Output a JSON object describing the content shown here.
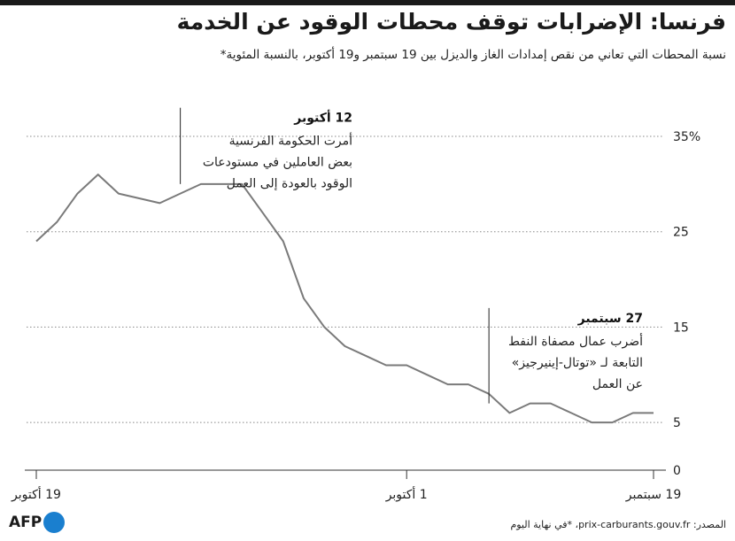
{
  "title": "فرنسا: الإضرابات توقف محطات الوقود عن الخدمة",
  "subtitle": "نسبة المحطات التي تعاني من نقص إمدادات الغاز والديزل بين 19 سبتمبر و19 أكتوبر، بالنسبة المئوية*",
  "source": "المصدر: prix-carburants.gouv.fr، *في نهاية اليوم",
  "logo_text": "AFP",
  "colors": {
    "line": "#7a7a7a",
    "grid": "#888888",
    "logo_blue": "#1a7fcf"
  },
  "chart_data": {
    "type": "line",
    "x_direction": "right-to-left",
    "y_ticks": [
      {
        "value": 0,
        "label": "0"
      },
      {
        "value": 5,
        "label": "5"
      },
      {
        "value": 15,
        "label": "15"
      },
      {
        "value": 25,
        "label": "25"
      },
      {
        "value": 35,
        "label": "35%"
      }
    ],
    "ylim": [
      0,
      35
    ],
    "x_ticks": [
      {
        "day": 0,
        "label": "19 سبتمبر"
      },
      {
        "day": 12,
        "label": "1 أكتوبر"
      },
      {
        "day": 30,
        "label": "19 أكتوبر"
      }
    ],
    "series": [
      {
        "points": [
          {
            "day": 0,
            "value": 6
          },
          {
            "day": 1,
            "value": 6
          },
          {
            "day": 2,
            "value": 5
          },
          {
            "day": 3,
            "value": 5
          },
          {
            "day": 4,
            "value": 6
          },
          {
            "day": 5,
            "value": 7
          },
          {
            "day": 6,
            "value": 7
          },
          {
            "day": 7,
            "value": 6
          },
          {
            "day": 8,
            "value": 8
          },
          {
            "day": 9,
            "value": 9
          },
          {
            "day": 10,
            "value": 9
          },
          {
            "day": 11,
            "value": 10
          },
          {
            "day": 12,
            "value": 11
          },
          {
            "day": 13,
            "value": 11
          },
          {
            "day": 14,
            "value": 12
          },
          {
            "day": 15,
            "value": 13
          },
          {
            "day": 16,
            "value": 15
          },
          {
            "day": 17,
            "value": 18
          },
          {
            "day": 18,
            "value": 24
          },
          {
            "day": 19,
            "value": 27
          },
          {
            "day": 20,
            "value": 30
          },
          {
            "day": 21,
            "value": 30
          },
          {
            "day": 22,
            "value": 30
          },
          {
            "day": 23,
            "value": 29
          },
          {
            "day": 24,
            "value": 28
          },
          {
            "day": 25,
            "value": 28.5
          },
          {
            "day": 26,
            "value": 29
          },
          {
            "day": 27,
            "value": 31
          },
          {
            "day": 28,
            "value": 29
          },
          {
            "day": 29,
            "value": 26
          },
          {
            "day": 30,
            "value": 24
          }
        ]
      }
    ],
    "annotations": [
      {
        "day": 23,
        "value": 30,
        "line_top": 38,
        "heading": "12 أكتوبر",
        "lines": [
          "أمرت الحكومة الفرنسية",
          "بعض العاملين في مستودعات",
          "الوقود بالعودة إلى العمل"
        ]
      },
      {
        "day": 8,
        "value": 7,
        "line_top": 17,
        "heading": "27 سبتمبر",
        "lines": [
          "أضرب عمال مصفاة النفط",
          "التابعة لـ «توتال-إينيرجيز»",
          "عن العمل"
        ]
      }
    ]
  }
}
